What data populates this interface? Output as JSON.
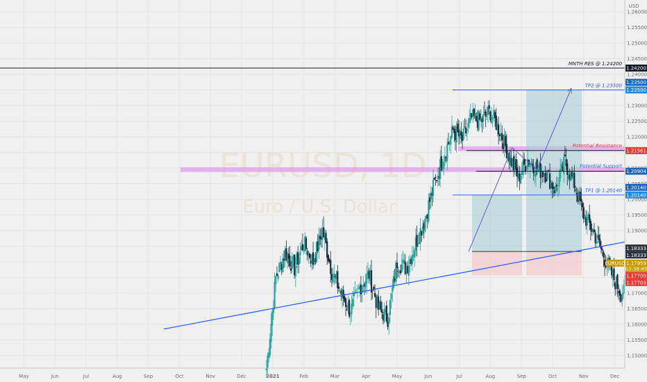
{
  "chart_data": {
    "type": "candlestick",
    "symbol_watermark": "EURUSD, 1D",
    "watermark_subtitle": "Euro / U.S. Dollar",
    "currency": "USD",
    "y_range": [
      1.146,
      1.262
    ],
    "y_ticks": [
      1.15,
      1.155,
      1.16,
      1.165,
      1.17,
      1.175,
      1.18,
      1.185,
      1.19,
      1.195,
      1.2,
      1.205,
      1.21,
      1.215,
      1.22,
      1.225,
      1.23,
      1.235,
      1.24,
      1.245,
      1.25,
      1.255,
      1.26
    ],
    "y_tick_labels": [
      "1.15000",
      "1.15500",
      "1.16000",
      "1.16500",
      "1.17000",
      "1.17500",
      "1.18000",
      "1.18500",
      "1.19000",
      "1.19500",
      "1.20000",
      "1.20500",
      "1.21000",
      "1.21500",
      "1.22000",
      "1.22500",
      "1.23000",
      "1.23500",
      "1.24000",
      "1.24500",
      "1.25000",
      "1.25500",
      "1.26000"
    ],
    "x_labels": [
      "May",
      "Jun",
      "Jul",
      "Aug",
      "Sep",
      "Oct",
      "Nov",
      "Dec",
      "2021",
      "Feb",
      "Mar",
      "Apr",
      "May",
      "Jun",
      "Jul",
      "Aug",
      "Sep",
      "Oct",
      "Nov",
      "Dec"
    ],
    "x_start": 0,
    "x_end": 20,
    "close_points": [
      [
        8.3,
        1.146
      ],
      [
        8.6,
        1.175
      ],
      [
        8.9,
        1.183
      ],
      [
        9.2,
        1.178
      ],
      [
        9.5,
        1.186
      ],
      [
        9.8,
        1.18
      ],
      [
        10.1,
        1.19
      ],
      [
        10.4,
        1.177
      ],
      [
        10.7,
        1.17
      ],
      [
        11.0,
        1.164
      ],
      [
        11.3,
        1.172
      ],
      [
        11.6,
        1.176
      ],
      [
        11.9,
        1.165
      ],
      [
        12.2,
        1.162
      ],
      [
        12.5,
        1.18
      ],
      [
        12.8,
        1.178
      ],
      [
        13.1,
        1.186
      ],
      [
        13.4,
        1.194
      ],
      [
        13.7,
        1.205
      ],
      [
        14.0,
        1.214
      ],
      [
        14.3,
        1.222
      ],
      [
        14.6,
        1.219
      ],
      [
        14.9,
        1.226
      ],
      [
        15.2,
        1.225
      ],
      [
        15.5,
        1.228
      ],
      [
        15.8,
        1.222
      ],
      [
        16.1,
        1.214
      ],
      [
        16.4,
        1.207
      ],
      [
        16.7,
        1.213
      ],
      [
        17.0,
        1.21
      ],
      [
        17.3,
        1.208
      ],
      [
        17.6,
        1.203
      ],
      [
        17.9,
        1.212
      ],
      [
        18.2,
        1.205
      ],
      [
        18.5,
        1.195
      ],
      [
        18.8,
        1.19
      ],
      [
        19.1,
        1.183
      ],
      [
        19.4,
        1.176
      ],
      [
        19.7,
        1.17
      ],
      [
        20.0,
        1.174
      ],
      [
        20.3,
        1.186
      ],
      [
        20.6,
        1.195
      ],
      [
        20.9,
        1.205
      ],
      [
        21.2,
        1.213
      ],
      [
        21.5,
        1.21
      ],
      [
        21.8,
        1.222
      ],
      [
        22.1,
        1.219
      ],
      [
        22.4,
        1.216
      ],
      [
        22.7,
        1.2
      ],
      [
        23.0,
        1.193
      ],
      [
        23.3,
        1.186
      ],
      [
        23.6,
        1.189
      ],
      [
        23.9,
        1.184
      ],
      [
        24.2,
        1.18
      ],
      [
        24.5,
        1.179
      ]
    ],
    "annotations": {
      "mnth_res": {
        "label": "MNTH RES @ 1.24200",
        "price": 1.242,
        "tag": "1.24200"
      },
      "tp2": {
        "label": "TP2 @ 1.23500",
        "price": 1.235,
        "tags": [
          "1.23500",
          "1.23500"
        ]
      },
      "potential_resistance": {
        "label": "Potential Resistance",
        "price": 1.2156,
        "tag": "1.21561"
      },
      "potential_support": {
        "label": "Potential Support",
        "price": 1.209,
        "tag": "1.20904"
      },
      "tp1": {
        "label": "TP1 @ 1.20140",
        "price": 1.2014,
        "tags": [
          "1.20140",
          "1.20140"
        ]
      },
      "entry": {
        "price": 1.1833,
        "tags": [
          "1.18333",
          "1.18333"
        ]
      },
      "current": {
        "symbol": "EURUSD",
        "price": 1.1796,
        "tag": "1.17959",
        "countdown": "02:38:45"
      },
      "stop": {
        "price": 1.177,
        "tags": [
          "1.17700",
          "1.17700"
        ]
      }
    },
    "trendline": {
      "from": [
        5.0,
        1.1585
      ],
      "to": [
        19.9,
        1.1865
      ]
    },
    "projection_path": [
      [
        14.8,
        1.1833
      ],
      [
        16.2,
        1.2165
      ],
      [
        17.0,
        1.2095
      ],
      [
        18.1,
        1.2355
      ]
    ],
    "colors": {
      "up": "#26a69a",
      "down": "#1e2a3a",
      "blue": "#2962ff",
      "resistance_zone": "#e29ef0",
      "profit_zone": "#a9cfd6",
      "loss_zone": "#f3c9c9",
      "resistance_tag": "#e53935",
      "support_tag": "#1565c0",
      "current_tag": "#c79a00",
      "mnth_tag": "#131722"
    }
  }
}
